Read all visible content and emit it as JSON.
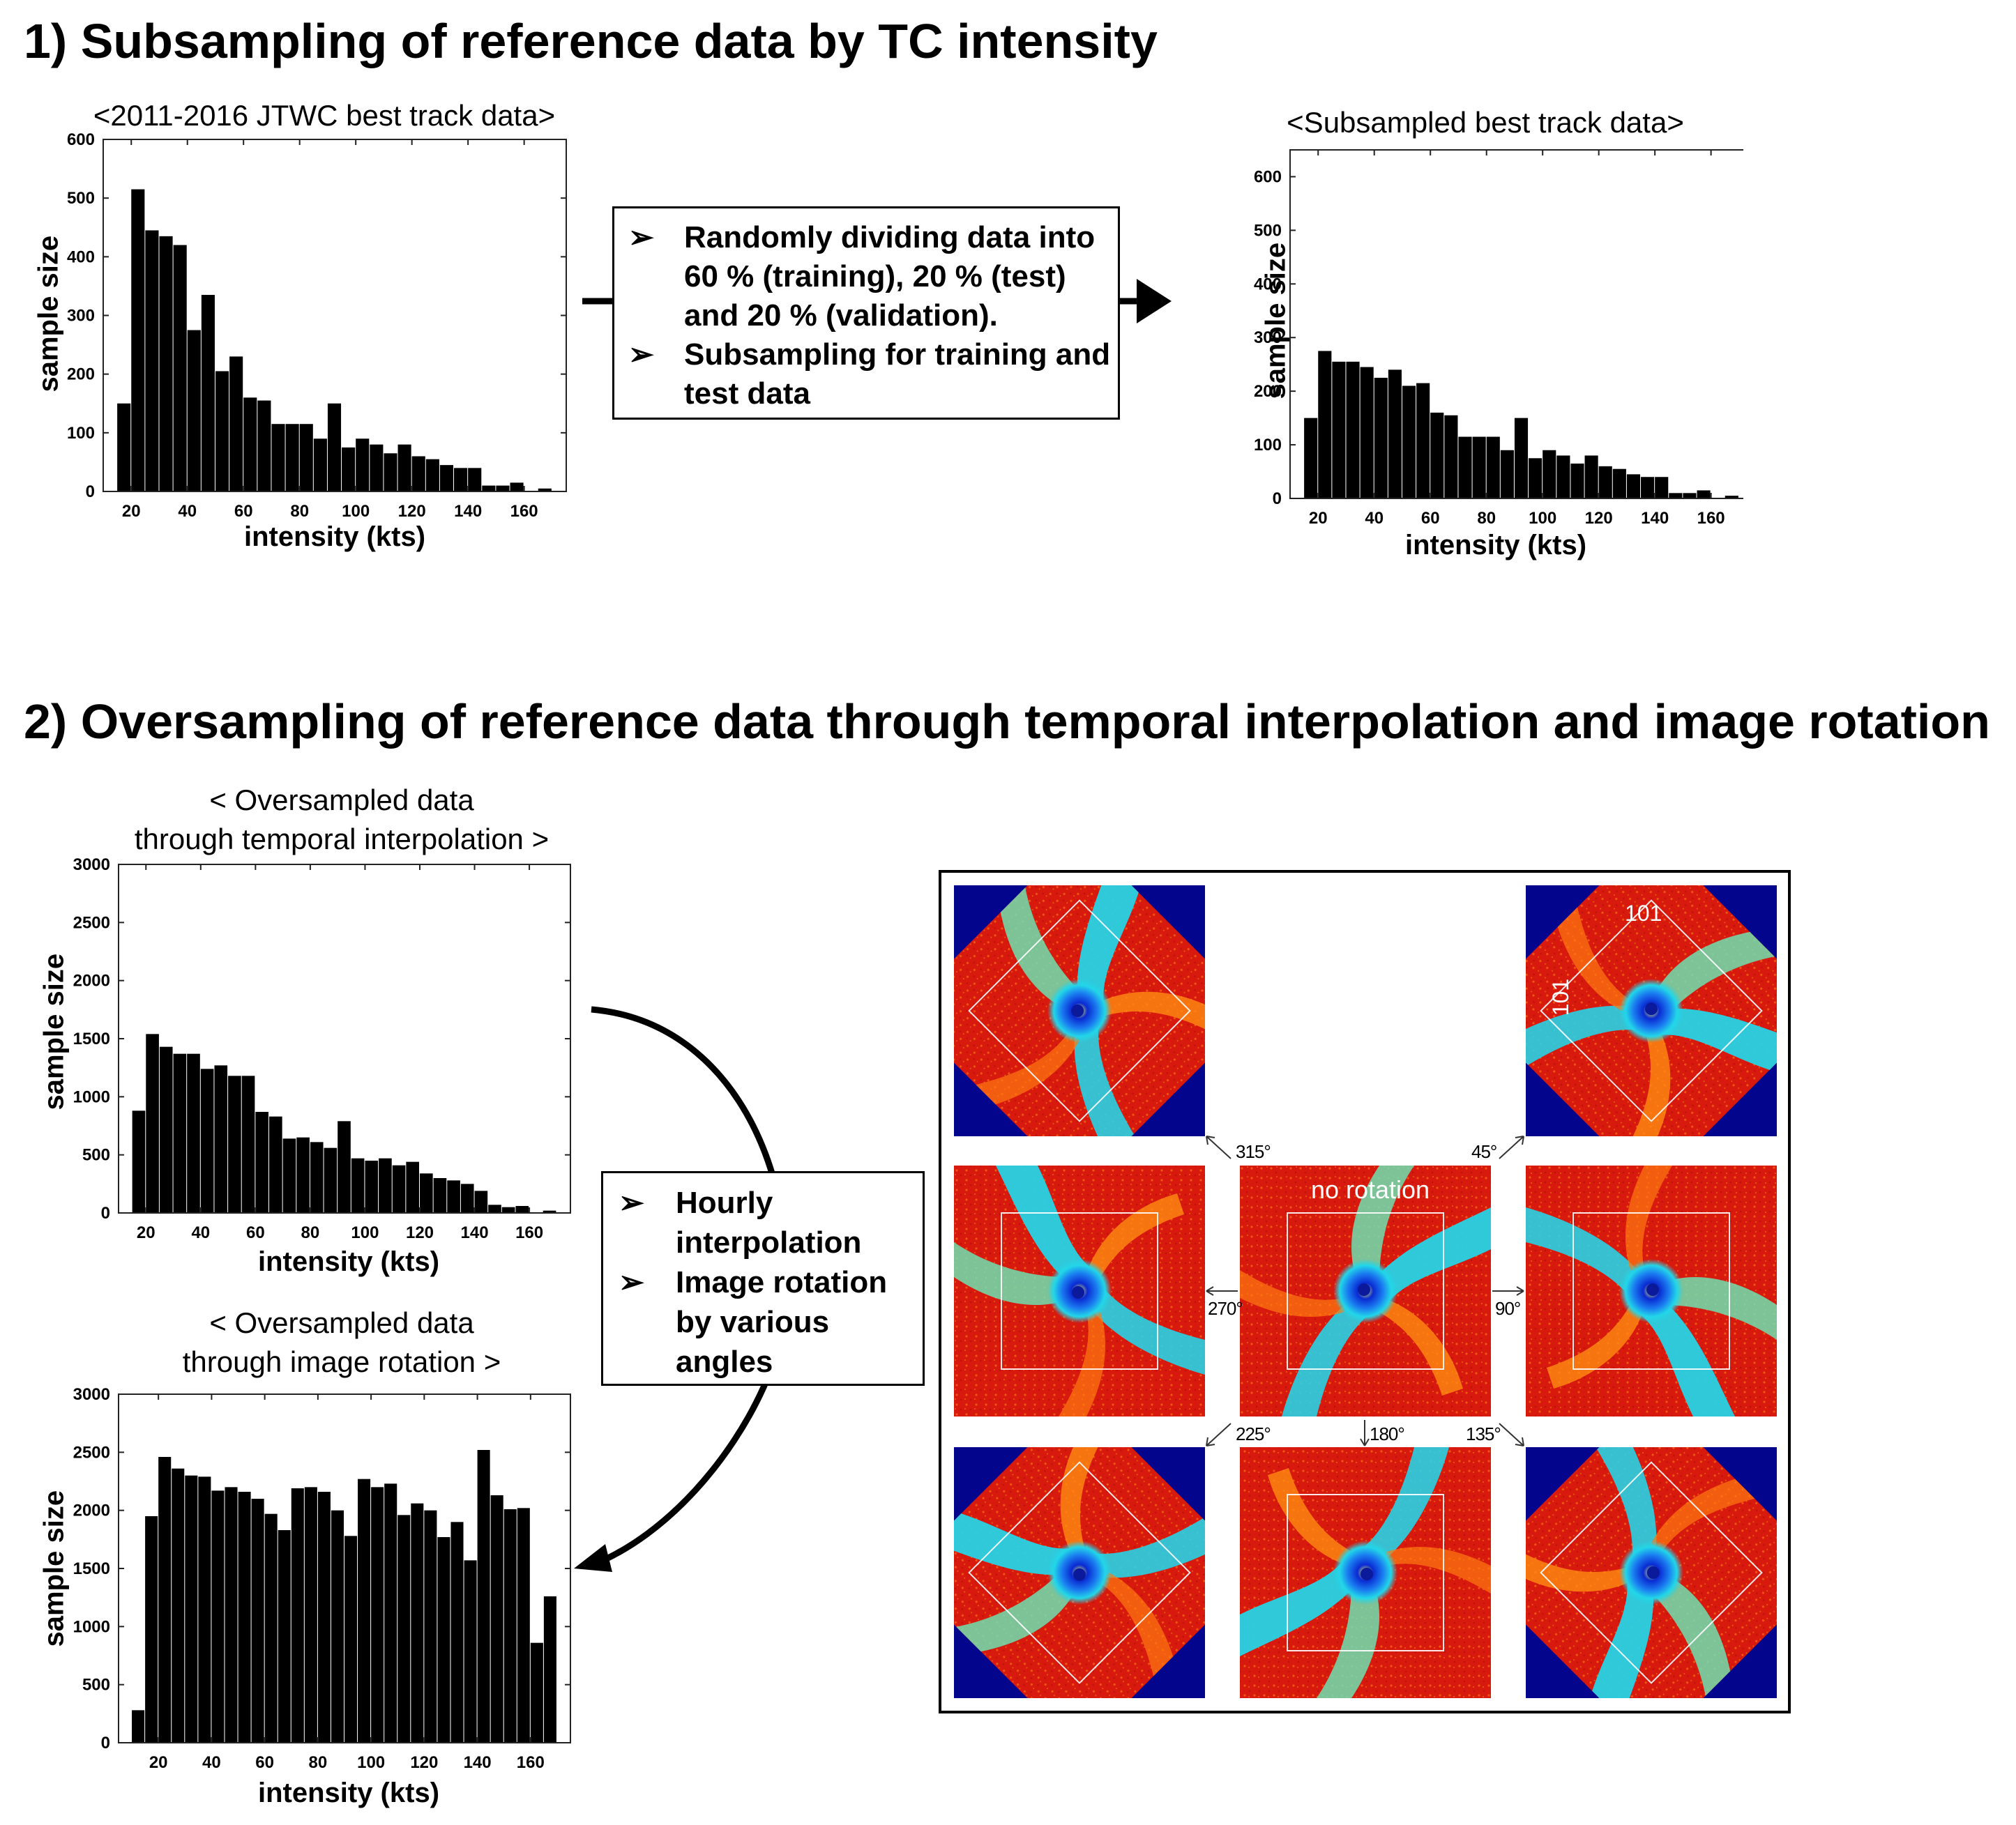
{
  "section1": {
    "title": "1) Subsampling of reference data by TC intensity"
  },
  "section2": {
    "title": "2) Oversampling of reference data through temporal interpolation and image rotation"
  },
  "textbox1": {
    "items": [
      "Randomly dividing data into 60 % (training), 20 % (test) and 20 % (validation).",
      "Subsampling for training and test data"
    ]
  },
  "textbox2": {
    "items": [
      "Hourly interpolation",
      "Image rotation by various angles"
    ]
  },
  "rotation_panel": {
    "center_label": "no rotation",
    "size_label_h": "101",
    "size_label_v": "101",
    "angles": {
      "a315": "315°",
      "a45": "45°",
      "a270": "270°",
      "a90": "90°",
      "a225": "225°",
      "a180": "180°",
      "a135": "135°"
    },
    "colors": {
      "warm": "#d7190e",
      "cool": "#19d2e6",
      "core": "#0a2ad2",
      "corner": "#03058c"
    }
  },
  "chart_data": [
    {
      "type": "bar",
      "title": "<2011-2016 JTWC best track data>",
      "xlabel": "intensity (kts)",
      "ylabel": "sample size",
      "xlim": [
        10,
        175
      ],
      "ylim": [
        0,
        600
      ],
      "xticks": [
        20,
        40,
        60,
        80,
        100,
        120,
        140,
        160
      ],
      "yticks": [
        0,
        100,
        200,
        300,
        400,
        500,
        600
      ],
      "bin_start": 15,
      "bin_width": 5,
      "values": [
        150,
        515,
        445,
        435,
        420,
        275,
        335,
        205,
        230,
        160,
        155,
        115,
        115,
        115,
        90,
        150,
        75,
        90,
        80,
        65,
        80,
        60,
        55,
        45,
        40,
        40,
        10,
        10,
        15,
        0,
        5
      ]
    },
    {
      "type": "bar",
      "title": "<Subsampled best track data>",
      "xlabel": "intensity (kts)",
      "ylabel": "sample size",
      "xlim": [
        10,
        175
      ],
      "ylim": [
        0,
        650
      ],
      "xticks": [
        20,
        40,
        60,
        80,
        100,
        120,
        140,
        160
      ],
      "yticks": [
        0,
        100,
        200,
        300,
        400,
        500,
        600
      ],
      "bin_start": 15,
      "bin_width": 5,
      "values": [
        150,
        275,
        255,
        255,
        245,
        225,
        240,
        210,
        215,
        160,
        155,
        115,
        115,
        115,
        90,
        150,
        75,
        90,
        80,
        65,
        80,
        60,
        55,
        45,
        40,
        40,
        10,
        10,
        15,
        0,
        5
      ]
    },
    {
      "type": "bar",
      "title_lines": [
        "< Oversampled data",
        "through temporal interpolation >"
      ],
      "xlabel": "intensity (kts)",
      "ylabel": "sample size",
      "xlim": [
        10,
        175
      ],
      "ylim": [
        0,
        3000
      ],
      "xticks": [
        20,
        40,
        60,
        80,
        100,
        120,
        140,
        160
      ],
      "yticks": [
        0,
        500,
        1000,
        1500,
        2000,
        2500,
        3000
      ],
      "bin_start": 15,
      "bin_width": 5,
      "values": [
        880,
        1540,
        1430,
        1370,
        1370,
        1240,
        1270,
        1180,
        1180,
        870,
        830,
        640,
        650,
        610,
        560,
        790,
        470,
        450,
        470,
        410,
        440,
        340,
        300,
        280,
        250,
        190,
        70,
        50,
        60,
        0,
        20
      ]
    },
    {
      "type": "bar",
      "title_lines": [
        "< Oversampled data",
        "through image rotation >"
      ],
      "xlabel": "intensity (kts)",
      "ylabel": "sample size",
      "xlim": [
        5,
        175
      ],
      "ylim": [
        0,
        3000
      ],
      "xticks": [
        20,
        40,
        60,
        80,
        100,
        120,
        140,
        160
      ],
      "yticks": [
        0,
        500,
        1000,
        1500,
        2000,
        2500,
        3000
      ],
      "bin_start": 10,
      "bin_width": 5,
      "values": [
        280,
        1950,
        2460,
        2360,
        2300,
        2290,
        2170,
        2200,
        2160,
        2100,
        1970,
        1830,
        2190,
        2200,
        2160,
        2000,
        1780,
        2270,
        2200,
        2230,
        1960,
        2060,
        2000,
        1770,
        1900,
        1570,
        2520,
        2130,
        2010,
        2020,
        860,
        1260
      ]
    }
  ]
}
